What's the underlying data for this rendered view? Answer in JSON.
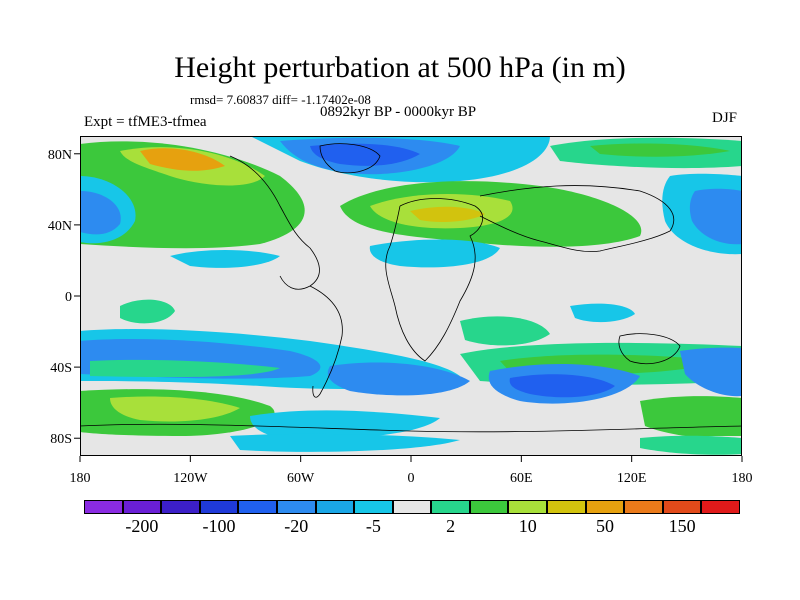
{
  "header": {
    "title": "Height perturbation at 500 hPa (in m)",
    "stats": "rmsd= 7.60837  diff= -1.17402e-08",
    "period": "0892kyr BP - 0000kyr BP",
    "experiment": "Expt = tfME3-tfmea",
    "season": "DJF"
  },
  "axes": {
    "lat_labels": [
      "80N",
      "40N",
      "0",
      "40S",
      "80S"
    ],
    "lon_labels": [
      "180",
      "120W",
      "60W",
      "0",
      "60E",
      "120E",
      "180"
    ]
  },
  "colorbar": {
    "colors": [
      "#8a2be2",
      "#6a1fd6",
      "#3c1fc8",
      "#1f3ad9",
      "#2060ef",
      "#2d8bf0",
      "#1aa6e6",
      "#17c6e8",
      "#e6e6e6",
      "#27d68c",
      "#3cc83c",
      "#a8e03a",
      "#d2c30e",
      "#e6a10f",
      "#ea7a1a",
      "#e24a1a",
      "#e01a1a"
    ],
    "labels": [
      "-200",
      "-100",
      "-20",
      "-5",
      "2",
      "10",
      "50",
      "150"
    ]
  }
}
